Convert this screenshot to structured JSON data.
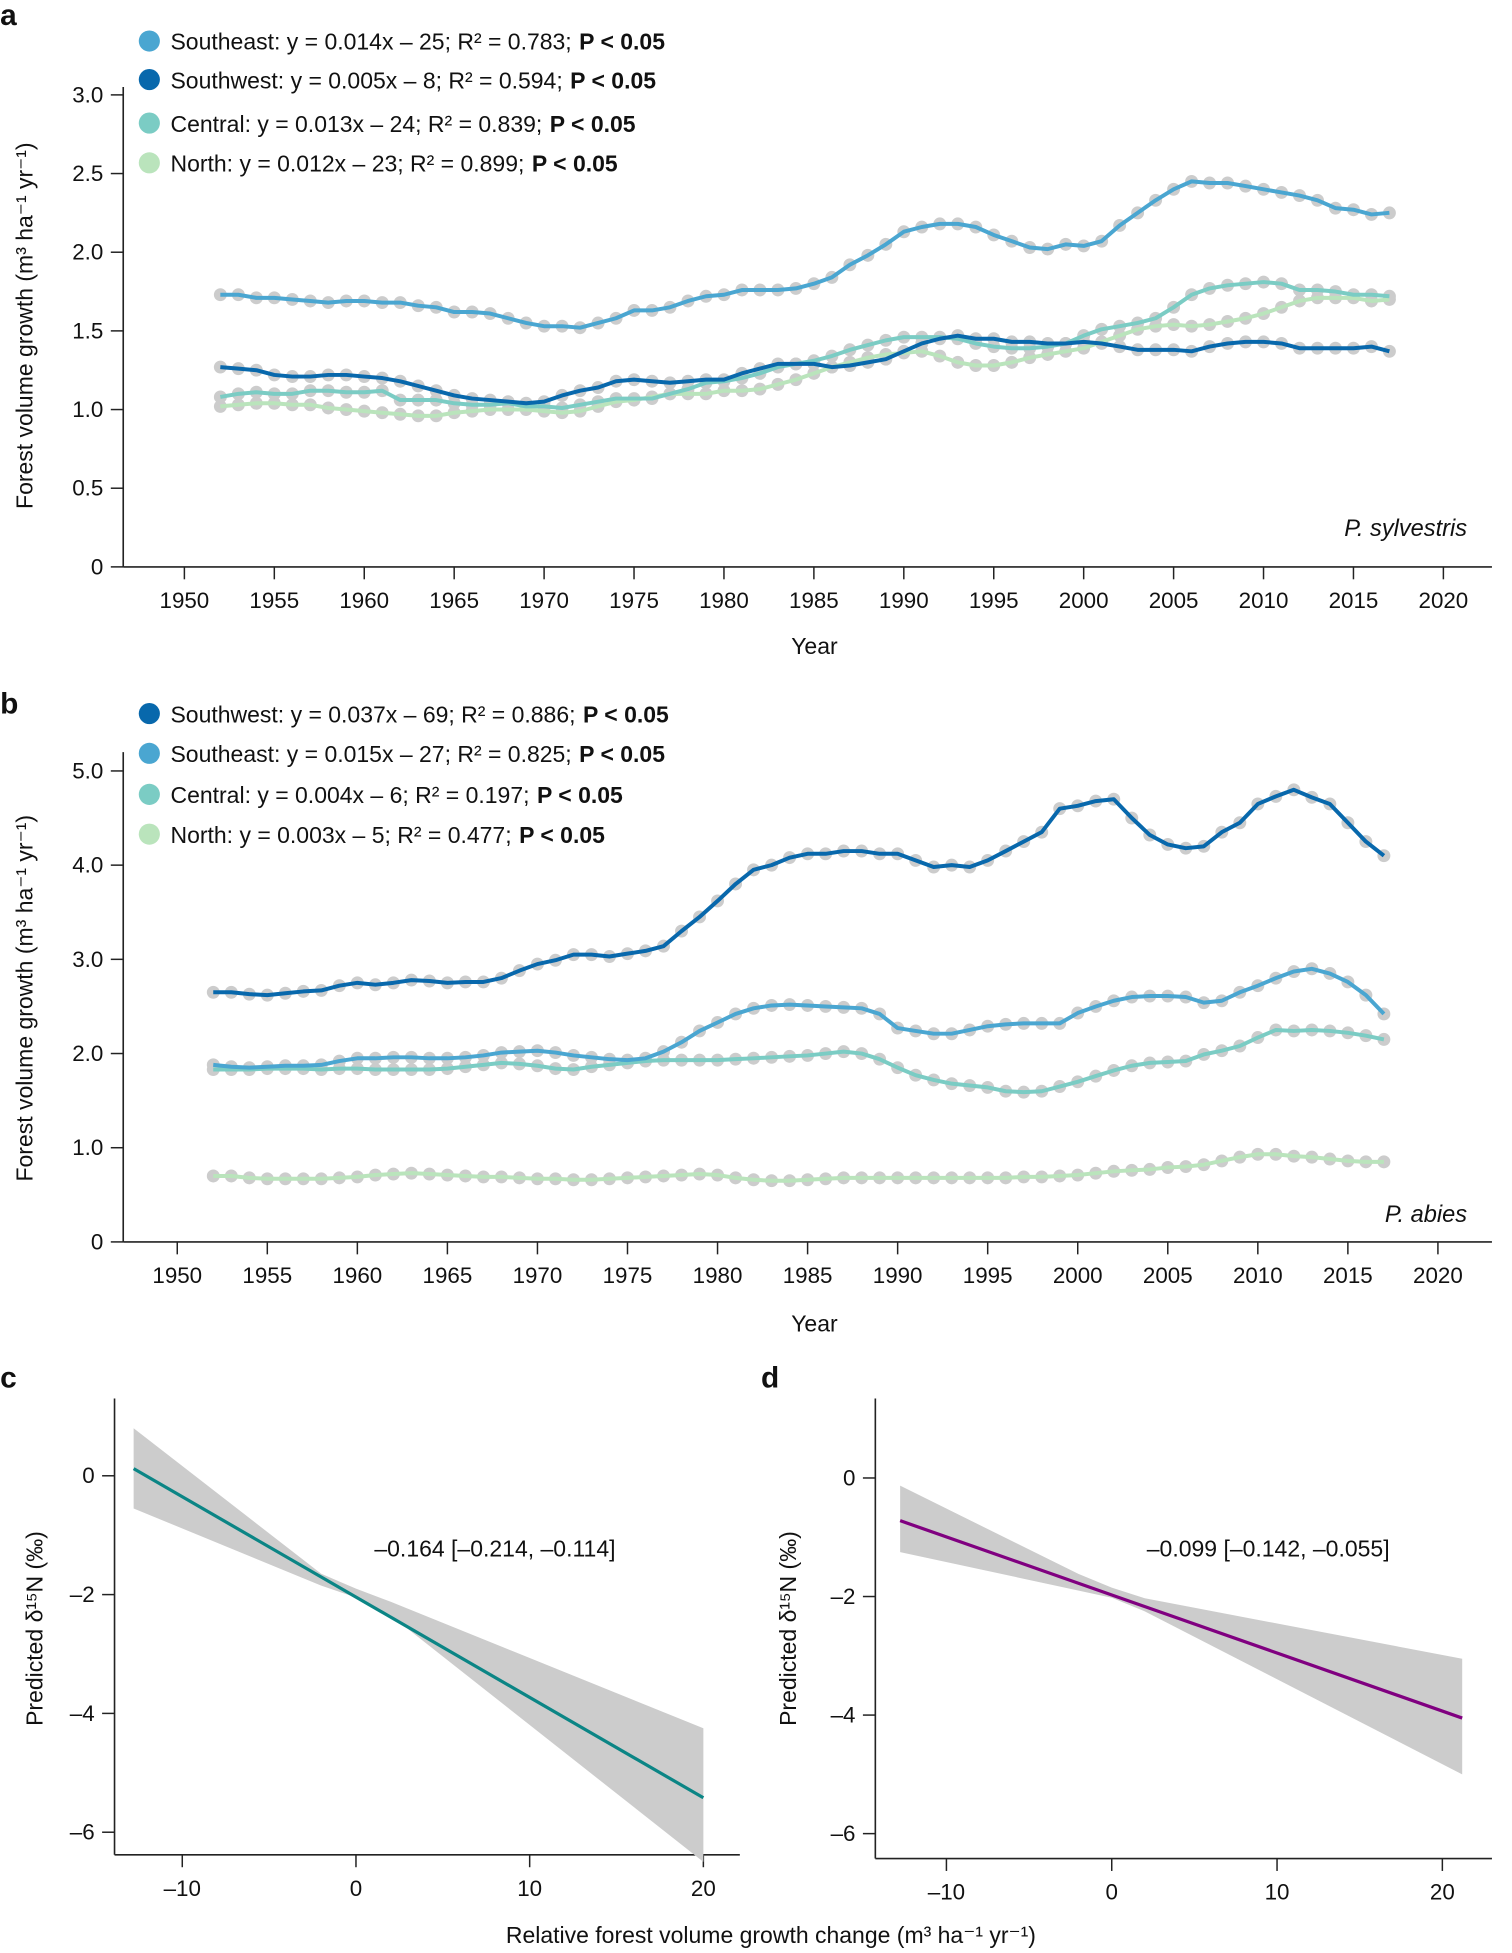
{
  "chart_data": [
    {
      "panel": "a",
      "type": "line",
      "species_label": "P. sylvestris",
      "xlabel": "Year",
      "ylabel": "Forest volume growth (m³ ha⁻¹ yr⁻¹)",
      "xlim": [
        1946.6,
        2022.7
      ],
      "ylim": [
        0,
        3.05
      ],
      "xticks": [
        1950,
        1955,
        1960,
        1965,
        1970,
        1975,
        1980,
        1985,
        1990,
        1995,
        2000,
        2005,
        2010,
        2015,
        2020
      ],
      "yticks": [
        0,
        0.5,
        1.0,
        1.5,
        2.0,
        2.5,
        3.0
      ],
      "ytick_labels": [
        "0",
        "0.5",
        "1.0",
        "1.5",
        "2.0",
        "2.5",
        "3.0"
      ],
      "legend_position": "top-left",
      "x_start": 1952,
      "series": [
        {
          "name": "Southeast",
          "color": "#4aa6d1",
          "legend": "Southeast: y = 0.014x – 25; R² = 0.783;",
          "p": "P < 0.05",
          "values": [
            1.73,
            1.73,
            1.71,
            1.71,
            1.7,
            1.69,
            1.68,
            1.69,
            1.69,
            1.68,
            1.68,
            1.66,
            1.65,
            1.62,
            1.62,
            1.61,
            1.58,
            1.55,
            1.53,
            1.53,
            1.52,
            1.55,
            1.58,
            1.63,
            1.63,
            1.65,
            1.69,
            1.72,
            1.73,
            1.76,
            1.76,
            1.76,
            1.77,
            1.8,
            1.84,
            1.92,
            1.98,
            2.05,
            2.13,
            2.16,
            2.18,
            2.18,
            2.16,
            2.11,
            2.07,
            2.03,
            2.02,
            2.05,
            2.04,
            2.07,
            2.17,
            2.25,
            2.33,
            2.4,
            2.45,
            2.44,
            2.44,
            2.42,
            2.4,
            2.38,
            2.36,
            2.33,
            2.28,
            2.27,
            2.24,
            2.25
          ]
        },
        {
          "name": "Southwest",
          "color": "#0868ac",
          "legend": "Southwest: y = 0.005x – 8; R² = 0.594;",
          "p": "P < 0.05",
          "values": [
            1.27,
            1.26,
            1.25,
            1.22,
            1.21,
            1.21,
            1.22,
            1.22,
            1.21,
            1.2,
            1.18,
            1.15,
            1.12,
            1.09,
            1.07,
            1.06,
            1.05,
            1.04,
            1.05,
            1.09,
            1.12,
            1.14,
            1.18,
            1.19,
            1.18,
            1.17,
            1.18,
            1.19,
            1.19,
            1.23,
            1.26,
            1.29,
            1.29,
            1.29,
            1.27,
            1.28,
            1.3,
            1.32,
            1.37,
            1.42,
            1.45,
            1.47,
            1.45,
            1.45,
            1.43,
            1.43,
            1.42,
            1.42,
            1.43,
            1.42,
            1.4,
            1.38,
            1.38,
            1.38,
            1.37,
            1.4,
            1.42,
            1.43,
            1.43,
            1.42,
            1.39,
            1.39,
            1.39,
            1.39,
            1.4,
            1.37
          ]
        },
        {
          "name": "Central",
          "color": "#7bccc4",
          "legend": "Central: y = 0.013x – 24; R² = 0.839;",
          "p": "P < 0.05",
          "values": [
            1.08,
            1.1,
            1.11,
            1.1,
            1.1,
            1.12,
            1.12,
            1.11,
            1.11,
            1.12,
            1.06,
            1.06,
            1.06,
            1.04,
            1.03,
            1.03,
            1.04,
            1.02,
            1.02,
            1.01,
            1.03,
            1.05,
            1.07,
            1.07,
            1.07,
            1.1,
            1.13,
            1.17,
            1.18,
            1.2,
            1.23,
            1.27,
            1.29,
            1.31,
            1.34,
            1.38,
            1.41,
            1.44,
            1.46,
            1.46,
            1.46,
            1.45,
            1.42,
            1.4,
            1.39,
            1.39,
            1.4,
            1.42,
            1.47,
            1.51,
            1.53,
            1.55,
            1.58,
            1.65,
            1.73,
            1.77,
            1.79,
            1.8,
            1.81,
            1.8,
            1.76,
            1.76,
            1.75,
            1.73,
            1.73,
            1.72
          ]
        },
        {
          "name": "North",
          "color": "#bae4bc",
          "legend": "North: y = 0.012x – 23; R² = 0.899;",
          "p": "P < 0.05",
          "values": [
            1.02,
            1.03,
            1.04,
            1.04,
            1.03,
            1.03,
            1.01,
            1.0,
            0.99,
            0.98,
            0.97,
            0.96,
            0.96,
            0.98,
            0.99,
            1.0,
            1.0,
            1.0,
            0.99,
            0.98,
            0.99,
            1.02,
            1.05,
            1.06,
            1.08,
            1.1,
            1.1,
            1.1,
            1.12,
            1.12,
            1.13,
            1.16,
            1.19,
            1.23,
            1.27,
            1.3,
            1.33,
            1.35,
            1.36,
            1.37,
            1.34,
            1.3,
            1.28,
            1.28,
            1.3,
            1.33,
            1.35,
            1.37,
            1.39,
            1.43,
            1.47,
            1.51,
            1.53,
            1.54,
            1.53,
            1.54,
            1.56,
            1.58,
            1.61,
            1.65,
            1.69,
            1.71,
            1.71,
            1.71,
            1.69,
            1.7
          ]
        }
      ]
    },
    {
      "panel": "b",
      "type": "line",
      "species_label": "P. abies",
      "xlabel": "Year",
      "ylabel": "Forest volume growth (m³ ha⁻¹ yr⁻¹)",
      "xlim": [
        1947,
        2023
      ],
      "ylim": [
        0,
        5.2
      ],
      "xticks": [
        1950,
        1955,
        1960,
        1965,
        1970,
        1975,
        1980,
        1985,
        1990,
        1995,
        2000,
        2005,
        2010,
        2015,
        2020
      ],
      "yticks": [
        0,
        1,
        2,
        3,
        4,
        5
      ],
      "ytick_labels": [
        "0",
        "1.0",
        "2.0",
        "3.0",
        "4.0",
        "5.0"
      ],
      "legend_position": "top-left",
      "x_start": 1952,
      "series": [
        {
          "name": "Southwest",
          "color": "#0868ac",
          "legend": "Southwest: y = 0.037x – 69; R² = 0.886;",
          "p": "P < 0.05",
          "values": [
            2.65,
            2.65,
            2.63,
            2.62,
            2.64,
            2.66,
            2.67,
            2.72,
            2.75,
            2.73,
            2.75,
            2.78,
            2.77,
            2.75,
            2.76,
            2.76,
            2.8,
            2.88,
            2.95,
            2.99,
            3.05,
            3.05,
            3.03,
            3.06,
            3.09,
            3.14,
            3.3,
            3.45,
            3.62,
            3.8,
            3.95,
            4.0,
            4.08,
            4.12,
            4.12,
            4.15,
            4.15,
            4.12,
            4.12,
            4.05,
            3.98,
            4.0,
            3.98,
            4.05,
            4.15,
            4.25,
            4.35,
            4.6,
            4.63,
            4.68,
            4.7,
            4.5,
            4.32,
            4.22,
            4.18,
            4.2,
            4.35,
            4.45,
            4.65,
            4.73,
            4.8,
            4.72,
            4.65,
            4.45,
            4.25,
            4.1
          ]
        },
        {
          "name": "Southeast",
          "color": "#4aa6d1",
          "legend": "Southeast: y = 0.015x – 27; R² = 0.825;",
          "p": "P < 0.05",
          "values": [
            1.88,
            1.86,
            1.85,
            1.86,
            1.87,
            1.87,
            1.88,
            1.92,
            1.95,
            1.95,
            1.96,
            1.96,
            1.95,
            1.95,
            1.96,
            1.98,
            2.01,
            2.02,
            2.03,
            2.01,
            1.98,
            1.96,
            1.94,
            1.93,
            1.95,
            2.02,
            2.12,
            2.24,
            2.33,
            2.42,
            2.48,
            2.51,
            2.52,
            2.51,
            2.5,
            2.49,
            2.48,
            2.42,
            2.27,
            2.24,
            2.21,
            2.21,
            2.25,
            2.29,
            2.31,
            2.32,
            2.32,
            2.32,
            2.43,
            2.5,
            2.56,
            2.6,
            2.61,
            2.61,
            2.6,
            2.54,
            2.56,
            2.65,
            2.72,
            2.8,
            2.87,
            2.9,
            2.85,
            2.76,
            2.62,
            2.42
          ]
        },
        {
          "name": "Central",
          "color": "#7bccc4",
          "legend": "Central: y = 0.004x – 6; R² = 0.197;",
          "p": "P < 0.05",
          "values": [
            1.83,
            1.83,
            1.83,
            1.84,
            1.84,
            1.84,
            1.83,
            1.84,
            1.84,
            1.83,
            1.83,
            1.83,
            1.83,
            1.84,
            1.86,
            1.88,
            1.9,
            1.89,
            1.87,
            1.84,
            1.83,
            1.86,
            1.88,
            1.9,
            1.92,
            1.93,
            1.93,
            1.93,
            1.93,
            1.94,
            1.95,
            1.96,
            1.97,
            1.98,
            2.0,
            2.02,
            2.0,
            1.94,
            1.85,
            1.77,
            1.72,
            1.68,
            1.66,
            1.64,
            1.6,
            1.59,
            1.6,
            1.65,
            1.7,
            1.76,
            1.82,
            1.87,
            1.9,
            1.91,
            1.92,
            1.99,
            2.03,
            2.08,
            2.17,
            2.25,
            2.24,
            2.25,
            2.24,
            2.22,
            2.19,
            2.15
          ]
        },
        {
          "name": "North",
          "color": "#bae4bc",
          "legend": "North: y = 0.003x – 5; R² = 0.477;",
          "p": "P < 0.05",
          "values": [
            0.7,
            0.7,
            0.68,
            0.67,
            0.67,
            0.67,
            0.67,
            0.68,
            0.69,
            0.71,
            0.72,
            0.73,
            0.72,
            0.71,
            0.7,
            0.69,
            0.69,
            0.68,
            0.67,
            0.67,
            0.66,
            0.66,
            0.67,
            0.68,
            0.69,
            0.7,
            0.71,
            0.72,
            0.71,
            0.68,
            0.66,
            0.65,
            0.65,
            0.66,
            0.67,
            0.68,
            0.68,
            0.68,
            0.68,
            0.68,
            0.68,
            0.68,
            0.68,
            0.68,
            0.68,
            0.69,
            0.69,
            0.7,
            0.71,
            0.73,
            0.75,
            0.76,
            0.77,
            0.79,
            0.8,
            0.82,
            0.86,
            0.9,
            0.93,
            0.93,
            0.91,
            0.9,
            0.88,
            0.86,
            0.85,
            0.85
          ]
        }
      ]
    },
    {
      "panel": "c",
      "type": "line",
      "ylabel": "Predicted δ¹⁵N (‰)",
      "xlim": [
        -13.9,
        22.1
      ],
      "ylim": [
        -6.38,
        1.3
      ],
      "xticks": [
        -10,
        0,
        10,
        20
      ],
      "xtick_labels": [
        "–10",
        "0",
        "10",
        "20"
      ],
      "yticks": [
        0,
        -2,
        -4,
        -6
      ],
      "ytick_labels": [
        "0",
        "–2",
        "–4",
        "–6"
      ],
      "annotation": "–0.164 [–0.214, –0.114]",
      "line_color": "#0b8585",
      "band_color": "#cccccc",
      "line": {
        "x": [
          -12.8,
          20
        ],
        "y": [
          0.12,
          -5.42
        ]
      },
      "band": {
        "x": [
          -12.8,
          -2,
          0,
          2,
          20
        ],
        "upper": [
          0.8,
          -1.65,
          -1.9,
          -2.12,
          -4.25
        ],
        "lower": [
          -0.55,
          -1.85,
          -2.05,
          -2.35,
          -6.5
        ]
      }
    },
    {
      "panel": "d",
      "type": "line",
      "ylabel": "Predicted δ¹⁵N (‰)",
      "xlim": [
        -14.3,
        23
      ],
      "ylim": [
        -6.42,
        1.34
      ],
      "xticks": [
        -10,
        0,
        10,
        20
      ],
      "xtick_labels": [
        "–10",
        "0",
        "10",
        "20"
      ],
      "yticks": [
        0,
        -2,
        -4,
        -6
      ],
      "ytick_labels": [
        "0",
        "–2",
        "–4",
        "–6"
      ],
      "annotation": "–0.099 [–0.142, –0.055]",
      "line_color": "#800080",
      "band_color": "#cccccc",
      "line": {
        "x": [
          -12.8,
          21.2
        ],
        "y": [
          -0.72,
          -4.05
        ]
      },
      "band": {
        "x": [
          -12.8,
          -2,
          0,
          2,
          21.2
        ],
        "upper": [
          -0.13,
          -1.62,
          -1.85,
          -2.03,
          -3.05
        ],
        "lower": [
          -1.25,
          -1.9,
          -2.02,
          -2.25,
          -5.0
        ]
      }
    }
  ],
  "shared_xlabel": "Relative forest volume growth change (m³ ha⁻¹ yr⁻¹)",
  "panel_letters": [
    "a",
    "b",
    "c",
    "d"
  ],
  "dot_color": "#cccccc"
}
